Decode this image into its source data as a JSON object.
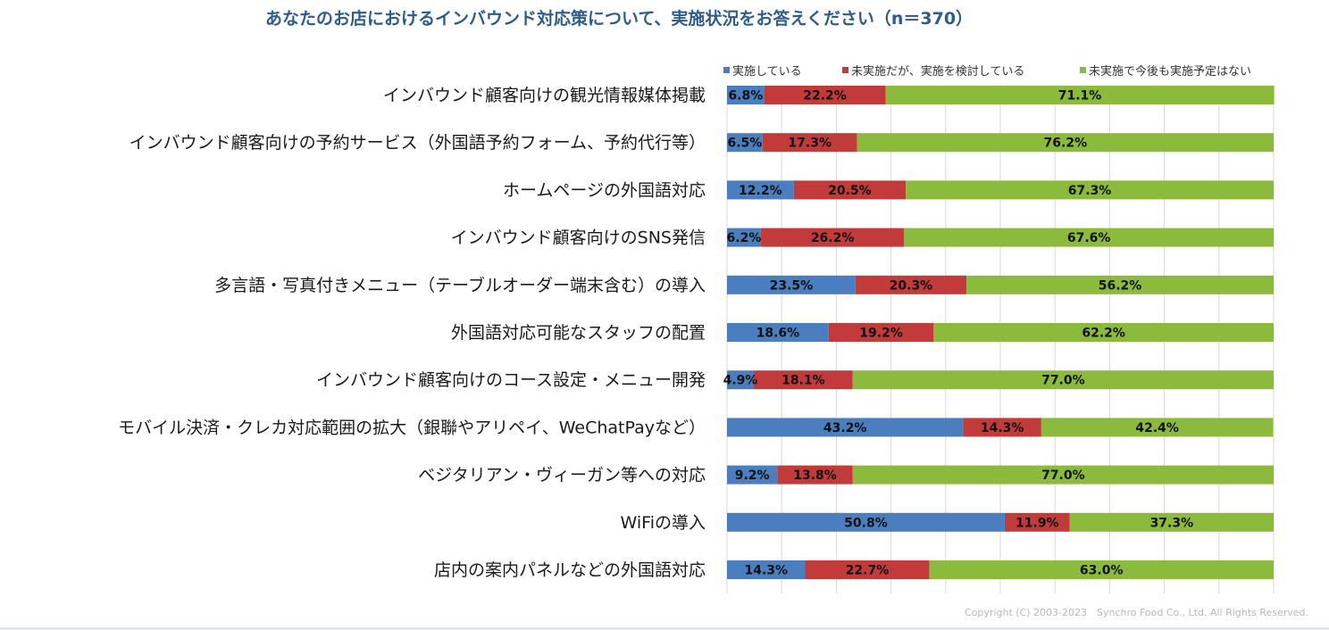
{
  "chart_data": {
    "type": "bar",
    "orientation": "horizontal",
    "stacked": true,
    "title": "あなたのお店におけるインバウンド対応策について、実施状況をお答えください（n＝370）",
    "categories": [
      "インバウンド顧客向けの観光情報媒体掲載",
      "インバウンド顧客向けの予約サービス（外国語予約フォーム、予約代行等）",
      "ホームページの外国語対応",
      "インバウンド顧客向けのSNS発信",
      "多言語・写真付きメニュー（テーブルオーダー端末含む）の導入",
      "外国語対応可能なスタッフの配置",
      "インバウンド顧客向けのコース設定・メニュー開発",
      "モバイル決済・クレカ対応範囲の拡大（銀聯やアリペイ、WeChatPayなど）",
      "ベジタリアン・ヴィーガン等への対応",
      "WiFiの導入",
      "店内の案内パネルなどの外国語対応"
    ],
    "series": [
      {
        "name": "実施している",
        "color": "#4a7ebf",
        "values": [
          6.8,
          6.5,
          12.2,
          6.2,
          23.5,
          18.6,
          4.9,
          43.2,
          9.2,
          50.8,
          14.3
        ]
      },
      {
        "name": "未実施だが、実施を検討している",
        "color": "#c23b3b",
        "values": [
          22.2,
          17.3,
          20.5,
          26.2,
          20.3,
          19.2,
          18.1,
          14.3,
          13.8,
          11.9,
          22.7
        ]
      },
      {
        "name": "未実施で今後も実施予定はない",
        "color": "#8bba3c",
        "values": [
          71.1,
          76.2,
          67.3,
          67.6,
          56.2,
          62.2,
          77.0,
          42.4,
          77.0,
          37.3,
          63.0
        ]
      }
    ],
    "unit": "%",
    "xlim": [
      0,
      100
    ],
    "grid": true,
    "legend": "top-right"
  },
  "footer": {
    "copyright": "Copyright (C) 2003-2023　Synchro Food Co., Ltd. All Rights Reserved."
  }
}
